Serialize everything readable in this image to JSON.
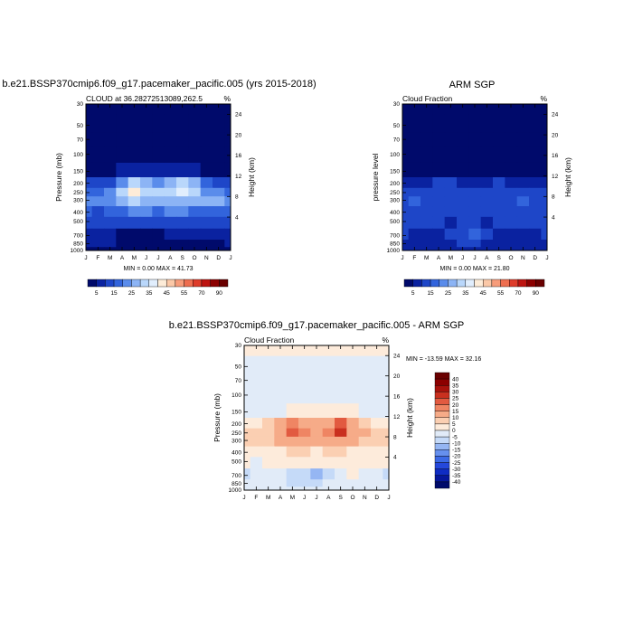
{
  "figure": {
    "title_left": "b.e21.BSSP370cmip6.f09_g17.pacemaker_pacific.005 (yrs 2015-2018)",
    "title_right": "ARM SGP",
    "title_bottom": "b.e21.BSSP370cmip6.f09_g17.pacemaker_pacific.005 - ARM SGP"
  },
  "chart_data": [
    {
      "type": "heatmap",
      "id": "model",
      "subtitle_left": "CLOUD at 36.28272513089,262.5",
      "subtitle_right": "%",
      "ylabel": "Pressure (mb)",
      "ylabel_right": "Height (km)",
      "x_ticks": [
        "J",
        "F",
        "M",
        "A",
        "M",
        "J",
        "J",
        "A",
        "S",
        "O",
        "N",
        "D",
        "J"
      ],
      "y_ticks": [
        "30",
        "50",
        "70",
        "100",
        "150",
        "200",
        "250",
        "300",
        "400",
        "500",
        "700",
        "850",
        "1000"
      ],
      "y_right_ticks": [
        "24",
        "20",
        "16",
        "12",
        "8",
        "4"
      ],
      "stats": "MIN =   0.00 MAX =  41.73",
      "min": 0.0,
      "max": 41.73,
      "colorbar": {
        "labels": [
          "5",
          "15",
          "25",
          "35",
          "45",
          "55",
          "70",
          "90"
        ],
        "levels": [
          5,
          10,
          15,
          20,
          25,
          30,
          35,
          40,
          45,
          50,
          55,
          60,
          70,
          80,
          90
        ],
        "colors": [
          "#000a6b",
          "#0a22a0",
          "#1e46c8",
          "#3264dc",
          "#5a8ceb",
          "#8cb4f5",
          "#b9d7fb",
          "#e1eefd",
          "#fdecd8",
          "#fbc8a7",
          "#f79c7a",
          "#ee6e50",
          "#de3c2a",
          "#bd1410",
          "#8c0000",
          "#6a0000"
        ]
      },
      "grid": {
        "months": 13,
        "levels": [
          30,
          50,
          70,
          100,
          150,
          200,
          250,
          300,
          400,
          500,
          700,
          850,
          1000
        ],
        "values": [
          [
            0,
            0,
            0,
            0,
            0,
            0,
            0,
            0,
            0,
            0,
            0,
            0,
            0
          ],
          [
            0,
            0,
            0,
            0,
            0,
            0,
            0,
            0,
            0,
            0,
            0,
            0,
            0
          ],
          [
            0,
            0,
            0,
            0,
            0,
            0,
            0,
            0,
            0,
            0,
            0,
            0,
            0
          ],
          [
            0,
            0,
            0,
            0,
            0,
            0,
            0,
            0,
            0,
            0,
            0,
            0,
            0
          ],
          [
            3,
            3,
            4,
            6,
            8,
            7,
            6,
            7,
            8,
            6,
            4,
            3,
            3
          ],
          [
            12,
            10,
            14,
            24,
            32,
            28,
            24,
            28,
            34,
            26,
            18,
            14,
            12
          ],
          [
            18,
            16,
            20,
            30,
            40,
            34,
            30,
            32,
            38,
            32,
            22,
            20,
            18
          ],
          [
            24,
            20,
            22,
            28,
            30,
            28,
            26,
            28,
            28,
            26,
            26,
            26,
            24
          ],
          [
            16,
            14,
            16,
            18,
            20,
            20,
            18,
            20,
            22,
            18,
            16,
            16,
            16
          ],
          [
            10,
            10,
            12,
            12,
            12,
            14,
            14,
            14,
            14,
            12,
            10,
            10,
            10
          ],
          [
            6,
            6,
            6,
            4,
            3,
            3,
            4,
            5,
            6,
            6,
            6,
            6,
            6
          ],
          [
            5,
            5,
            5,
            4,
            2,
            2,
            3,
            4,
            4,
            4,
            4,
            4,
            5
          ],
          [
            2,
            2,
            2,
            2,
            2,
            2,
            2,
            2,
            2,
            2,
            2,
            2,
            2
          ]
        ]
      }
    },
    {
      "type": "heatmap",
      "id": "obs",
      "subtitle_left": "Cloud Fraction",
      "subtitle_right": "%",
      "ylabel": "pressure level",
      "ylabel_right": "Height (km)",
      "x_ticks": [
        "J",
        "F",
        "M",
        "A",
        "M",
        "J",
        "J",
        "A",
        "S",
        "O",
        "N",
        "D",
        "J"
      ],
      "y_ticks": [
        "30",
        "50",
        "70",
        "100",
        "150",
        "200",
        "250",
        "300",
        "400",
        "500",
        "700",
        "850",
        "1000"
      ],
      "y_right_ticks": [
        "24",
        "20",
        "16",
        "12",
        "8",
        "4"
      ],
      "stats": "MIN =   0.00 MAX =  21.80",
      "min": 0.0,
      "max": 21.8,
      "colorbar": {
        "labels": [
          "5",
          "15",
          "25",
          "35",
          "45",
          "55",
          "70",
          "90"
        ],
        "levels": [
          5,
          10,
          15,
          20,
          25,
          30,
          35,
          40,
          45,
          50,
          55,
          60,
          70,
          80,
          90
        ],
        "colors": [
          "#000a6b",
          "#0a22a0",
          "#1e46c8",
          "#3264dc",
          "#5a8ceb",
          "#8cb4f5",
          "#b9d7fb",
          "#e1eefd",
          "#fdecd8",
          "#fbc8a7",
          "#f79c7a",
          "#ee6e50",
          "#de3c2a",
          "#bd1410",
          "#8c0000",
          "#6a0000"
        ]
      },
      "grid": {
        "months": 13,
        "levels": [
          30,
          50,
          70,
          100,
          150,
          200,
          250,
          300,
          400,
          500,
          700,
          850,
          1000
        ],
        "values": [
          [
            0,
            0,
            0,
            0,
            0,
            0,
            0,
            0,
            0,
            0,
            0,
            0,
            0
          ],
          [
            0,
            0,
            0,
            0,
            0,
            0,
            0,
            0,
            0,
            0,
            0,
            0,
            0
          ],
          [
            0,
            0,
            0,
            0,
            0,
            0,
            0,
            0,
            0,
            0,
            0,
            0,
            0
          ],
          [
            0,
            0,
            0,
            0,
            0,
            0,
            0,
            0,
            0,
            0,
            0,
            0,
            0
          ],
          [
            1,
            1,
            1,
            2,
            3,
            2,
            2,
            2,
            2,
            2,
            1,
            1,
            1
          ],
          [
            6,
            6,
            8,
            10,
            10,
            8,
            8,
            8,
            10,
            8,
            6,
            6,
            6
          ],
          [
            10,
            10,
            12,
            14,
            12,
            12,
            12,
            12,
            14,
            12,
            10,
            10,
            10
          ],
          [
            14,
            16,
            14,
            14,
            12,
            12,
            14,
            12,
            12,
            14,
            16,
            14,
            14
          ],
          [
            12,
            14,
            14,
            12,
            10,
            12,
            12,
            10,
            12,
            14,
            14,
            12,
            12
          ],
          [
            10,
            12,
            12,
            10,
            8,
            10,
            10,
            8,
            10,
            12,
            12,
            10,
            10
          ],
          [
            10,
            8,
            8,
            8,
            12,
            14,
            16,
            10,
            6,
            6,
            8,
            8,
            10
          ],
          [
            6,
            6,
            6,
            6,
            8,
            10,
            10,
            8,
            6,
            6,
            8,
            6,
            6
          ],
          [
            6,
            6,
            6,
            6,
            6,
            6,
            6,
            6,
            6,
            6,
            6,
            6,
            6
          ]
        ]
      }
    },
    {
      "type": "heatmap",
      "id": "diff",
      "subtitle_left": "Cloud Fraction",
      "subtitle_right": "%",
      "ylabel": "Pressure (mb)",
      "ylabel_right": "Height (km)",
      "x_ticks": [
        "J",
        "F",
        "M",
        "A",
        "M",
        "J",
        "J",
        "A",
        "S",
        "O",
        "N",
        "D",
        "J"
      ],
      "y_ticks": [
        "30",
        "50",
        "70",
        "100",
        "150",
        "200",
        "250",
        "300",
        "400",
        "500",
        "700",
        "850",
        "1000"
      ],
      "y_right_ticks": [
        "24",
        "20",
        "16",
        "12",
        "8",
        "4"
      ],
      "stats": "MIN = -13.59 MAX =  32.16",
      "min": -13.59,
      "max": 32.16,
      "colorbar": {
        "labels": [
          "40",
          "35",
          "30",
          "25",
          "20",
          "15",
          "10",
          "5",
          "0",
          "-5",
          "-10",
          "-15",
          "-20",
          "-25",
          "-30",
          "-35",
          "-40"
        ],
        "levels": [
          -40,
          -35,
          -30,
          -25,
          -20,
          -15,
          -10,
          -5,
          0,
          5,
          10,
          15,
          20,
          25,
          30,
          35,
          40
        ],
        "colors": [
          "#000a6b",
          "#06179b",
          "#0f2cc3",
          "#2548db",
          "#3c6ae6",
          "#6690ee",
          "#95b6f3",
          "#c5daf8",
          "#e1ebf8",
          "#fdebdb",
          "#fbcfb2",
          "#f6ab88",
          "#ef8563",
          "#e25a40",
          "#c9301f",
          "#a8120c",
          "#8c0000",
          "#6a0000"
        ]
      },
      "grid": {
        "months": 13,
        "levels": [
          30,
          50,
          70,
          100,
          150,
          200,
          250,
          300,
          400,
          500,
          700,
          850,
          1000
        ],
        "values": [
          [
            2,
            2,
            2,
            2,
            2,
            2,
            2,
            2,
            2,
            2,
            2,
            2,
            2
          ],
          [
            -2,
            -2,
            -2,
            -2,
            -2,
            -2,
            -2,
            -2,
            -2,
            -2,
            -2,
            -2,
            -2
          ],
          [
            -2,
            -2,
            -2,
            -2,
            -2,
            -2,
            -2,
            -2,
            -2,
            -2,
            -2,
            -2,
            -2
          ],
          [
            -2,
            -2,
            -2,
            -2,
            -2,
            -2,
            -2,
            -2,
            -2,
            -2,
            -3,
            -2,
            -2
          ],
          [
            -1,
            -2,
            -2,
            -1,
            0,
            1,
            1,
            1,
            2,
            0,
            -1,
            -2,
            -1
          ],
          [
            2,
            2,
            6,
            10,
            16,
            12,
            10,
            14,
            20,
            12,
            8,
            4,
            2
          ],
          [
            8,
            6,
            8,
            14,
            22,
            16,
            12,
            16,
            26,
            14,
            10,
            8,
            8
          ],
          [
            8,
            6,
            6,
            10,
            14,
            12,
            10,
            12,
            14,
            10,
            8,
            8,
            8
          ],
          [
            4,
            2,
            2,
            4,
            6,
            6,
            4,
            6,
            6,
            4,
            2,
            2,
            4
          ],
          [
            0,
            -2,
            0,
            2,
            2,
            2,
            2,
            4,
            2,
            0,
            0,
            0,
            0
          ],
          [
            -6,
            -2,
            -2,
            -4,
            -8,
            -10,
            -12,
            -6,
            -2,
            0,
            -2,
            -2,
            -6
          ],
          [
            -1,
            -1,
            -1,
            -2,
            -6,
            -8,
            -8,
            -4,
            -2,
            -2,
            -4,
            -2,
            -1
          ],
          [
            -2,
            -2,
            -2,
            -2,
            -2,
            -2,
            -2,
            -2,
            -2,
            -2,
            -3,
            -2,
            -2
          ]
        ]
      }
    }
  ]
}
